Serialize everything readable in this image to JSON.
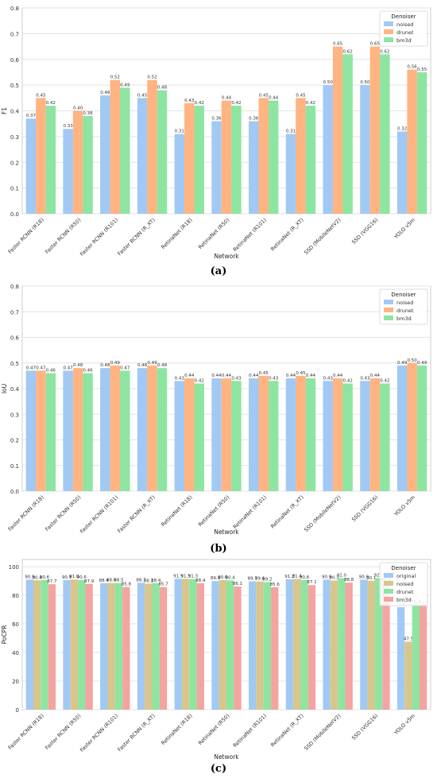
{
  "colors": {
    "original": "#a1c9f4",
    "noised_ac": "#a1c9f4",
    "drunet_ac": "#ffb482",
    "bm3d_ac": "#8de5a1",
    "noised_c": "#d8c68c",
    "drunet_c": "#8de5a1",
    "bm3d_c": "#f4a4a1"
  },
  "chart_data": [
    {
      "type": "bar",
      "panel_label": "(a)",
      "xlabel": "Network",
      "ylabel": "F1",
      "ylim": [
        0,
        0.8
      ],
      "yticks": [
        0.0,
        0.1,
        0.2,
        0.3,
        0.4,
        0.5,
        0.6,
        0.7,
        0.8
      ],
      "grid": true,
      "legend_title": "Denoiser",
      "legend_position": "top-right",
      "categories": [
        "Faster RCNN (R18)",
        "Faster RCNN (R50)",
        "Faster RCNN (R101)",
        "Faster RCNN (R_XT)",
        "RetinaNet (R18)",
        "RetinaNet (R50)",
        "RetinaNet (R101)",
        "RetinaNet (R_XT)",
        "SSD (MobileNetV2)",
        "SSD (VGG16)",
        "YOLO v5m"
      ],
      "series": [
        {
          "name": "noised",
          "values": [
            0.37,
            0.33,
            0.46,
            0.45,
            0.31,
            0.36,
            0.36,
            0.31,
            0.5,
            0.5,
            0.32
          ],
          "labels": [
            "0.37",
            "0.33",
            "0.46",
            "0.45",
            "0.31",
            "0.36",
            "0.36",
            "0.31",
            "0.50",
            "0.50",
            "0.32"
          ]
        },
        {
          "name": "drunet",
          "values": [
            0.45,
            0.4,
            0.52,
            0.52,
            0.43,
            0.44,
            0.45,
            0.45,
            0.65,
            0.65,
            0.56
          ],
          "labels": [
            "0.45",
            "0.40",
            "0.52",
            "0.52",
            "0.43",
            "0.44",
            "0.45",
            "0.45",
            "0.65",
            "0.65",
            "0.56"
          ]
        },
        {
          "name": "bm3d",
          "values": [
            0.42,
            0.38,
            0.49,
            0.48,
            0.42,
            0.42,
            0.44,
            0.42,
            0.62,
            0.62,
            0.55
          ],
          "labels": [
            "0.42",
            "0.38",
            "0.49",
            "0.48",
            "0.42",
            "0.42",
            "0.44",
            "0.42",
            "0.62",
            "0.62",
            "0.55"
          ]
        }
      ]
    },
    {
      "type": "bar",
      "panel_label": "(b)",
      "xlabel": "Network",
      "ylabel": "IoU",
      "ylim": [
        0,
        0.8
      ],
      "yticks": [
        0.0,
        0.1,
        0.2,
        0.3,
        0.4,
        0.5,
        0.6,
        0.7,
        0.8
      ],
      "grid": true,
      "legend_title": "Denoiser",
      "legend_position": "top-right",
      "categories": [
        "Faster RCNN (R18)",
        "Faster RCNN (R50)",
        "Faster RCNN (R101)",
        "Faster RCNN (R_XT)",
        "RetinaNet (R18)",
        "RetinaNet (R50)",
        "RetinaNet (R101)",
        "RetinaNet (R_XT)",
        "SSD (MobileNetV2)",
        "SSD (VGG16)",
        "YOLO v5m"
      ],
      "series": [
        {
          "name": "noised",
          "values": [
            0.47,
            0.47,
            0.48,
            0.48,
            0.43,
            0.44,
            0.44,
            0.44,
            0.43,
            0.43,
            0.49
          ],
          "labels": [
            "0.47",
            "0.47",
            "0.48",
            "0.48",
            "0.43",
            "0.44",
            "0.44",
            "0.44",
            "0.43",
            "0.43",
            "0.49"
          ]
        },
        {
          "name": "drunet",
          "values": [
            0.47,
            0.48,
            0.49,
            0.49,
            0.44,
            0.44,
            0.45,
            0.45,
            0.44,
            0.44,
            0.5
          ],
          "labels": [
            "0.47",
            "0.48",
            "0.49",
            "0.49",
            "0.44",
            "0.44",
            "0.45",
            "0.45",
            "0.44",
            "0.44",
            "0.50"
          ]
        },
        {
          "name": "bm3d",
          "values": [
            0.46,
            0.46,
            0.47,
            0.48,
            0.42,
            0.43,
            0.43,
            0.44,
            0.42,
            0.42,
            0.49
          ],
          "labels": [
            "0.46",
            "0.46",
            "0.47",
            "0.48",
            "0.42",
            "0.43",
            "0.43",
            "0.44",
            "0.42",
            "0.42",
            "0.49"
          ]
        }
      ]
    },
    {
      "type": "bar",
      "panel_label": "(c)",
      "xlabel": "Network",
      "ylabel": "PoCPR",
      "ylim": [
        0,
        105
      ],
      "yticks": [
        0,
        20,
        40,
        60,
        80,
        100
      ],
      "grid": true,
      "legend_title": "Denoiser",
      "legend_position": "top-right",
      "categories": [
        "Faster RCNN (R18)",
        "Faster RCNN (R50)",
        "Faster RCNN (R101)",
        "Faster RCNN (R_XT)",
        "RetinaNet (R18)",
        "RetinaNet (R50)",
        "RetinaNet (R101)",
        "RetinaNet (R_XT)",
        "SSD (MobileNetV2)",
        "SSD (VGG16)",
        "YOLO v5m"
      ],
      "series": [
        {
          "name": "original",
          "values": [
            90.9,
            90.5,
            88.4,
            88.7,
            91.5,
            89.9,
            89.7,
            91.2,
            90.9,
            90.9,
            71.6
          ],
          "labels": [
            "90.9",
            "90.5",
            "88.4",
            "88.7",
            "91.5",
            "89.9",
            "89.7",
            "91.2",
            "90.9",
            "90.9",
            "71.6"
          ]
        },
        {
          "name": "noised",
          "values": [
            90.4,
            91.0,
            88.6,
            88.1,
            91.5,
            90.6,
            89.6,
            91.4,
            90.3,
            90.1,
            47.5
          ],
          "labels": [
            "90.4",
            "91.0",
            "88.6",
            "88.1",
            "91.5",
            "90.6",
            "89.6",
            "91.4",
            "90.3",
            "90.1",
            "47.5"
          ]
        },
        {
          "name": "drunet",
          "values": [
            90.6,
            90.6,
            88.5,
            88.4,
            91.3,
            90.4,
            89.2,
            90.6,
            92.0,
            92.0,
            73.4
          ],
          "labels": [
            "90.6",
            "90.6",
            "88.5",
            "88.4",
            "91.3",
            "90.4",
            "89.2",
            "90.6",
            "92.0",
            "92.0",
            "73.4"
          ]
        },
        {
          "name": "bm3d",
          "values": [
            87.7,
            87.9,
            85.8,
            85.7,
            88.4,
            86.1,
            85.6,
            87.1,
            88.8,
            88.8,
            72.5
          ],
          "labels": [
            "87.7",
            "87.9",
            "85.8",
            "85.7",
            "88.4",
            "86.1",
            "85.6",
            "87.1",
            "88.8",
            "88.8",
            "72.5"
          ]
        }
      ]
    }
  ]
}
